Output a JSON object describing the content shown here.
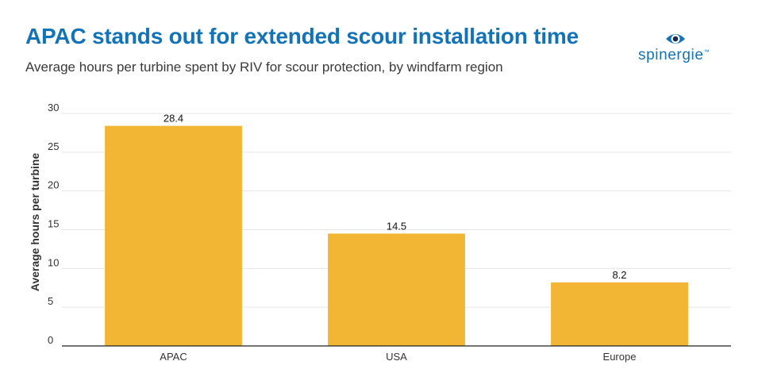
{
  "header": {
    "title": "APAC stands out for extended scour installation time",
    "subtitle": "Average hours per turbine spent by RIV for scour protection, by windfarm region"
  },
  "logo": {
    "text": "spinergie",
    "icon": "eye-icon",
    "color": "#1273b9"
  },
  "chart_data": {
    "type": "bar",
    "categories": [
      "APAC",
      "USA",
      "Europe"
    ],
    "values": [
      28.4,
      14.5,
      8.2
    ],
    "data_labels": [
      "28.4",
      "14.5",
      "8.2"
    ],
    "title": "APAC stands out for extended scour installation time",
    "subtitle": "Average hours per turbine spent by RIV for scour protection, by windfarm region",
    "xlabel": "",
    "ylabel": "Average hours per turbine",
    "ylim": [
      0,
      30
    ],
    "yticks": [
      0,
      5,
      10,
      15,
      20,
      25,
      30
    ],
    "ytick_labels": [
      "0",
      "5",
      "10",
      "15",
      "20",
      "25",
      "30"
    ],
    "grid": true,
    "bar_color": "#f2b634"
  }
}
